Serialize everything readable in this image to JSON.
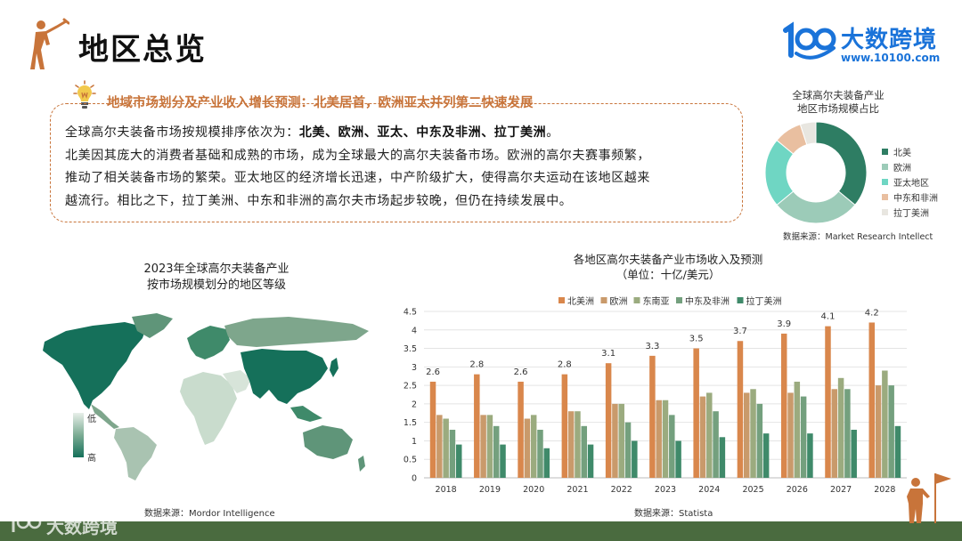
{
  "page": {
    "title": "地区总览"
  },
  "logo": {
    "name": "大数跨境",
    "url": "www.10100.com",
    "watermark": "大数跨境"
  },
  "colors": {
    "accent": "#c8743a",
    "brand": "#1a73d9",
    "footer": "#4a6b3f"
  },
  "summary": {
    "heading": "地域市场划分及产业收入增长预测：北美居首，欧洲亚太并列第二快速发展",
    "line1_prefix": "全球高尔夫装备市场按规模排序依次为：",
    "line1_bold": "北美、欧洲、亚太、中东及非洲、拉丁美洲",
    "line1_suffix": "。",
    "line2": "北美因其庞大的消费者基础和成熟的市场，成为全球最大的高尔夫装备市场。欧洲的高尔夫赛事频繁，",
    "line3": "推动了相关装备市场的繁荣。亚太地区的经济增长迅速，中产阶级扩大，使得高尔夫运动在该地区越来",
    "line4": "越流行。相比之下，拉丁美洲、中东和非洲的高尔夫市场起步较晚，但仍在持续发展中。"
  },
  "donut": {
    "title_line1": "全球高尔夫装备产业",
    "title_line2": "地区市场规模占比",
    "source": "数据来源：Market Research Intellect",
    "legend": [
      {
        "label": "北美",
        "color": "#2e7d63"
      },
      {
        "label": "欧洲",
        "color": "#9ccbb8"
      },
      {
        "label": "亚太地区",
        "color": "#6fd6c3"
      },
      {
        "label": "中东和非洲",
        "color": "#e9bfa0"
      },
      {
        "label": "拉丁美洲",
        "color": "#e8e6e0"
      }
    ]
  },
  "map": {
    "title_line1": "2023年全球高尔夫装备产业",
    "title_line2": "按市场规模划分的地区等级",
    "scale_low": "低",
    "scale_high": "高",
    "source": "数据来源：Mordor Intelligence"
  },
  "bar_chart": {
    "title_line1": "各地区高尔夫装备产业市场收入及预测",
    "title_line2": "（单位：十亿/美元）",
    "source": "数据来源：Statista"
  },
  "chart_data": [
    {
      "type": "pie",
      "categories": [
        "北美",
        "欧洲",
        "亚太地区",
        "中东和非洲",
        "拉丁美洲"
      ],
      "values": [
        36,
        28,
        22,
        9,
        5
      ],
      "donut": true,
      "legend_position": "right"
    },
    {
      "type": "bar",
      "categories": [
        "2018",
        "2019",
        "2020",
        "2021",
        "2022",
        "2023",
        "2024",
        "2025",
        "2026",
        "2027",
        "2028"
      ],
      "series": [
        {
          "name": "北美洲",
          "color": "#d9874c",
          "values": [
            2.6,
            2.8,
            2.6,
            2.8,
            3.1,
            3.3,
            3.5,
            3.7,
            3.9,
            4.1,
            4.2
          ]
        },
        {
          "name": "欧洲",
          "color": "#c99a6b",
          "values": [
            1.7,
            1.7,
            1.6,
            1.8,
            2.0,
            2.1,
            2.2,
            2.3,
            2.3,
            2.4,
            2.5
          ]
        },
        {
          "name": "东南亚",
          "color": "#9bab7f",
          "values": [
            1.6,
            1.7,
            1.7,
            1.8,
            2.0,
            2.1,
            2.3,
            2.4,
            2.6,
            2.7,
            2.9
          ]
        },
        {
          "name": "中东及非洲",
          "color": "#74a07e",
          "values": [
            1.3,
            1.4,
            1.3,
            1.4,
            1.5,
            1.7,
            1.8,
            2.0,
            2.2,
            2.4,
            2.5
          ]
        },
        {
          "name": "拉丁美洲",
          "color": "#3f8a6a",
          "values": [
            0.9,
            0.9,
            0.8,
            0.9,
            1.0,
            1.0,
            1.1,
            1.2,
            1.2,
            1.3,
            1.4
          ]
        }
      ],
      "data_labels_series": "北美洲",
      "data_labels": [
        "2.6",
        "2.8",
        "2.6",
        "2.8",
        "3.1",
        "3.3",
        "3.5",
        "3.7",
        "3.9",
        "4.1",
        "4.2"
      ],
      "y_ticks": [
        "0",
        "0.5",
        "1",
        "1.5",
        "2",
        "2.5",
        "3",
        "3.5",
        "4",
        "4.5"
      ],
      "ylim": [
        0,
        4.5
      ],
      "grid": true,
      "legend_position": "top"
    }
  ]
}
